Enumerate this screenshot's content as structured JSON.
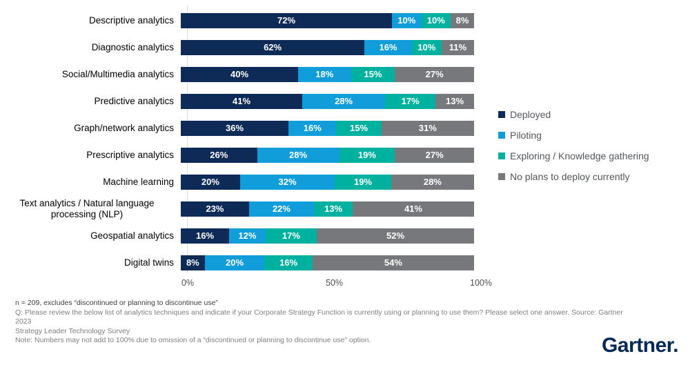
{
  "chart_data": {
    "type": "bar",
    "orientation": "horizontal-stacked",
    "value_suffix": "%",
    "categories": [
      "Descriptive analytics",
      "Diagnostic analytics",
      "Social/Multimedia analytics",
      "Predictive analytics",
      "Graph/network analytics",
      "Prescriptive analytics",
      "Machine learning",
      "Text analytics / Natural language processing (NLP)",
      "Geospatial analytics",
      "Digital twins"
    ],
    "series": [
      {
        "name": "Deployed",
        "color": "#0e2a56",
        "values": [
          72,
          62,
          40,
          41,
          36,
          26,
          20,
          23,
          16,
          8
        ]
      },
      {
        "name": "Piloting",
        "color": "#109dd9",
        "values": [
          10,
          16,
          18,
          28,
          16,
          28,
          32,
          22,
          12,
          20
        ]
      },
      {
        "name": "Exploring / Knowledge gathering",
        "color": "#00b1a0",
        "values": [
          10,
          10,
          15,
          17,
          15,
          19,
          19,
          13,
          17,
          16
        ]
      },
      {
        "name": "No plans to deploy currently",
        "color": "#77787b",
        "values": [
          8,
          11,
          27,
          13,
          31,
          27,
          28,
          41,
          52,
          54
        ]
      }
    ],
    "x_axis": {
      "range": [
        0,
        100
      ],
      "ticks": [
        {
          "label": "0%",
          "position": 0
        },
        {
          "label": "50%",
          "position": 50
        },
        {
          "label": "100%",
          "position": 100
        }
      ]
    },
    "legend_position": "right",
    "grid": false
  },
  "footnotes": {
    "line1": "n = 209, excludes “discontinued or planning to discontinue use”",
    "line2": "Q: Please review the below list of analytics techniques and indicate if your Corporate Strategy Function is currently using or planning to use them? Please select one answer. Source: Gartner 2023",
    "line3": "Strategy Leader Technology Survey",
    "line4": "Note: Numbers may not add to 100% due to omission of a “discontinued or planning to discontinue use” option."
  },
  "branding": {
    "logo_text": "Gartner.",
    "logo_color": "#002856"
  }
}
